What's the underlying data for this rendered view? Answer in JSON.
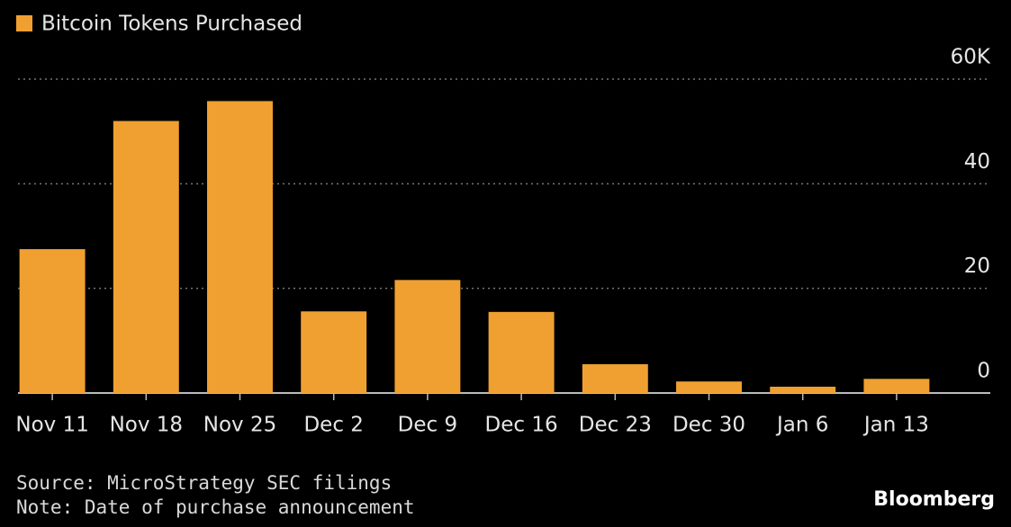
{
  "chart_data": {
    "type": "bar",
    "legend": "Bitcoin Tokens Purchased",
    "categories": [
      "Nov 11",
      "Nov 18",
      "Nov 25",
      "Dec 2",
      "Dec 9",
      "Dec 16",
      "Dec 23",
      "Dec 30",
      "Jan 6",
      "Jan 13"
    ],
    "values": [
      27.5,
      52,
      55.8,
      15.6,
      21.6,
      15.5,
      5.5,
      2.2,
      1.2,
      2.7
    ],
    "color": "#f0a030",
    "ylim": [
      0,
      60
    ],
    "yticks": [
      0,
      20,
      40,
      {
        "value": 60,
        "label": "60K"
      }
    ],
    "grid": true,
    "source": "Source: MicroStrategy SEC filings",
    "note": "Note: Date of purchase announcement",
    "brand": "Bloomberg"
  }
}
